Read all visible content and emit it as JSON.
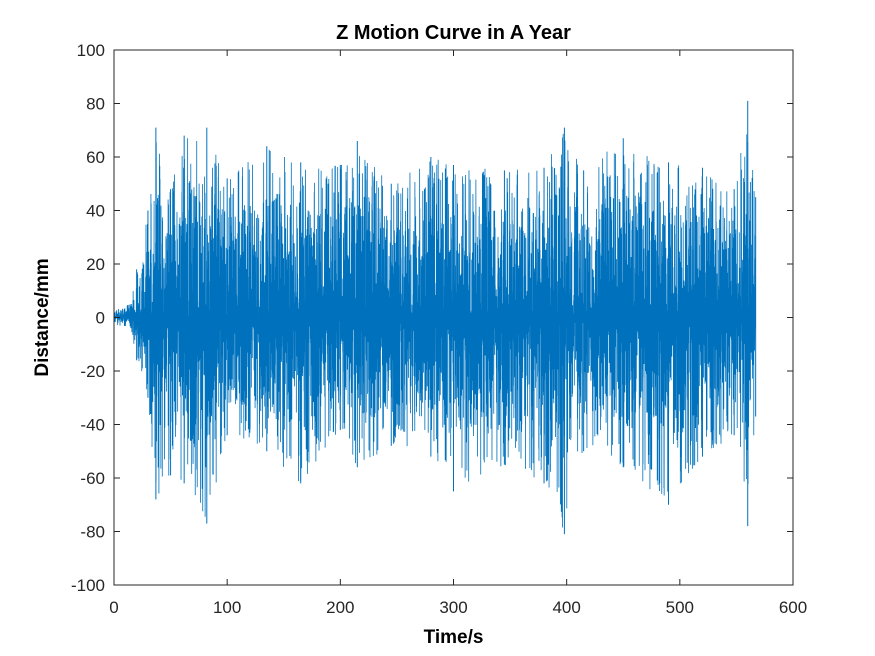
{
  "chart_data": {
    "type": "line",
    "title": "Z Motion Curve in A Year",
    "xlabel": "Time/s",
    "ylabel": "Distance/mm",
    "xlim": [
      0,
      600
    ],
    "ylim": [
      -100,
      100
    ],
    "xticks": [
      0,
      100,
      200,
      300,
      400,
      500,
      600
    ],
    "yticks": [
      100,
      80,
      60,
      40,
      20,
      0,
      -20,
      -40,
      -60,
      -80,
      -100
    ],
    "grid": false,
    "line_color": "#0072BD",
    "series": [
      {
        "x_start": 0,
        "x_end": 567,
        "envelope": [
          {
            "x": 0,
            "max": 4,
            "min": -3
          },
          {
            "x": 15,
            "max": 5,
            "min": -4
          },
          {
            "x": 20,
            "max": 18,
            "min": -16
          },
          {
            "x": 30,
            "max": 40,
            "min": -30
          },
          {
            "x": 37,
            "max": 71,
            "min": -68
          },
          {
            "x": 50,
            "max": 48,
            "min": -59
          },
          {
            "x": 62,
            "max": 68,
            "min": -62
          },
          {
            "x": 82,
            "max": 71,
            "min": -77
          },
          {
            "x": 100,
            "max": 52,
            "min": -44
          },
          {
            "x": 135,
            "max": 64,
            "min": -50
          },
          {
            "x": 165,
            "max": 58,
            "min": -62
          },
          {
            "x": 200,
            "max": 57,
            "min": -42
          },
          {
            "x": 215,
            "max": 66,
            "min": -56
          },
          {
            "x": 245,
            "max": 50,
            "min": -48
          },
          {
            "x": 280,
            "max": 60,
            "min": -52
          },
          {
            "x": 300,
            "max": 57,
            "min": -65
          },
          {
            "x": 345,
            "max": 55,
            "min": -55
          },
          {
            "x": 380,
            "max": 56,
            "min": -62
          },
          {
            "x": 398,
            "max": 71,
            "min": -81
          },
          {
            "x": 415,
            "max": 55,
            "min": -50
          },
          {
            "x": 450,
            "max": 67,
            "min": -56
          },
          {
            "x": 490,
            "max": 58,
            "min": -70
          },
          {
            "x": 520,
            "max": 56,
            "min": -52
          },
          {
            "x": 548,
            "max": 48,
            "min": -44
          },
          {
            "x": 560,
            "max": 81,
            "min": -78
          },
          {
            "x": 567,
            "max": 45,
            "min": -37
          }
        ]
      }
    ]
  }
}
